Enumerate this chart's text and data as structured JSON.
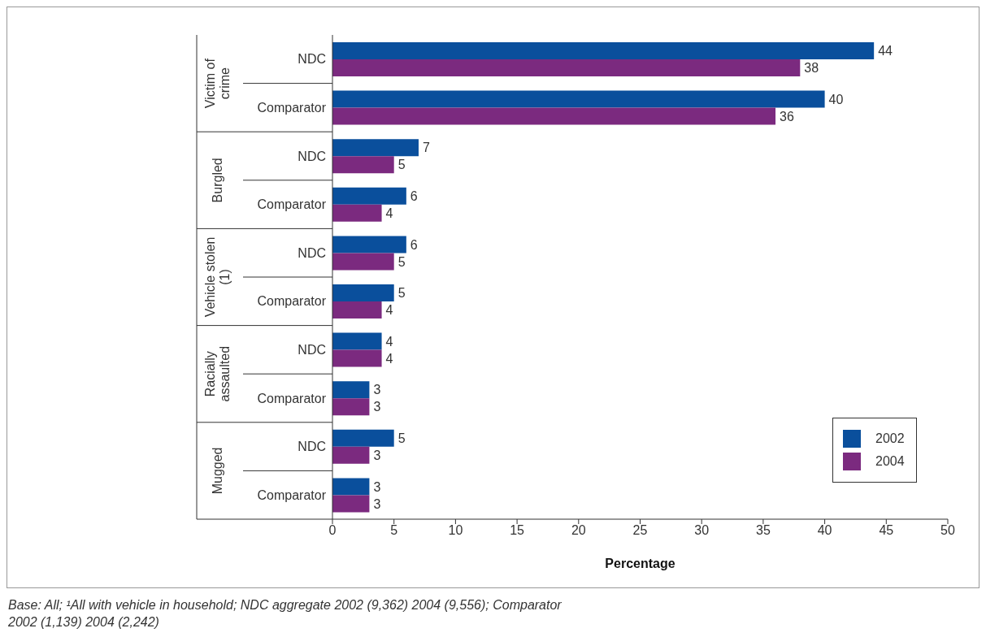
{
  "chart_data": {
    "type": "bar",
    "orientation": "horizontal",
    "xlabel": "Percentage",
    "categories": [
      "NDC",
      "Comparator",
      "NDC",
      "Comparator",
      "NDC",
      "Comparator",
      "NDC",
      "Comparator",
      "NDC",
      "Comparator"
    ],
    "series": [
      {
        "name": "2002",
        "color": "#0a4f9c",
        "values": [
          44,
          40,
          7,
          6,
          6,
          5,
          4,
          3,
          5,
          3
        ]
      },
      {
        "name": "2004",
        "color": "#7b2a7f",
        "values": [
          38,
          36,
          5,
          4,
          5,
          4,
          4,
          3,
          3,
          3
        ]
      }
    ],
    "xlim": [
      0,
      50
    ],
    "xticks": [
      0,
      5,
      10,
      15,
      20,
      25,
      30,
      35,
      40,
      45,
      50
    ],
    "data_labels": true,
    "legend": "bottom right",
    "annotations": [
      "Victim of crime",
      "Burgled",
      "Vehicle stolen (1)",
      "Racially assaulted",
      "Mugged",
      "Base: All; ¹All with vehicle in household; NDC aggregate 2002 (9,362) 2004 (9,556); Comparator 2002 (1,139) 2004 (2,242)"
    ]
  }
}
